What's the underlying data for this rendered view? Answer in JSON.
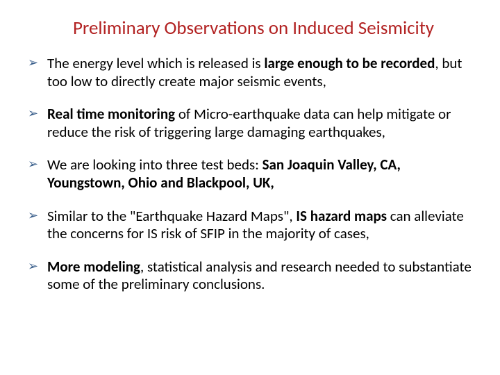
{
  "title": "Preliminary Observations on Induced Seismicity",
  "colors": {
    "title": "#b22222",
    "arrow": "#385d8a",
    "text": "#000000",
    "background": "#ffffff"
  },
  "typography": {
    "title_fontsize": 27,
    "body_fontsize": 21,
    "font_family": "Calibri"
  },
  "bullets": [
    {
      "segments": [
        {
          "text": "The energy level which is released is ",
          "bold": false
        },
        {
          "text": "large enough to be recorded",
          "bold": true
        },
        {
          "text": ", but too low to directly create major seismic events,",
          "bold": false
        }
      ]
    },
    {
      "segments": [
        {
          "text": "Real time monitoring",
          "bold": true
        },
        {
          "text": " of Micro-earthquake data can help mitigate or reduce the risk of triggering large damaging earthquakes,",
          "bold": false
        }
      ]
    },
    {
      "segments": [
        {
          "text": "We are looking into three test beds: ",
          "bold": false
        },
        {
          "text": "San Joaquin Valley, CA, Youngstown, Ohio and Blackpool, UK,",
          "bold": true
        }
      ]
    },
    {
      "segments": [
        {
          "text": "Similar to the \"Earthquake Hazard Maps\", ",
          "bold": false
        },
        {
          "text": "IS hazard maps",
          "bold": true
        },
        {
          "text": " can alleviate the concerns for IS risk of SFIP in the majority of cases,",
          "bold": false
        }
      ]
    },
    {
      "segments": [
        {
          "text": "More modeling",
          "bold": true
        },
        {
          "text": ", statistical analysis and research needed to substantiate some of the preliminary conclusions.",
          "bold": false
        }
      ]
    }
  ]
}
